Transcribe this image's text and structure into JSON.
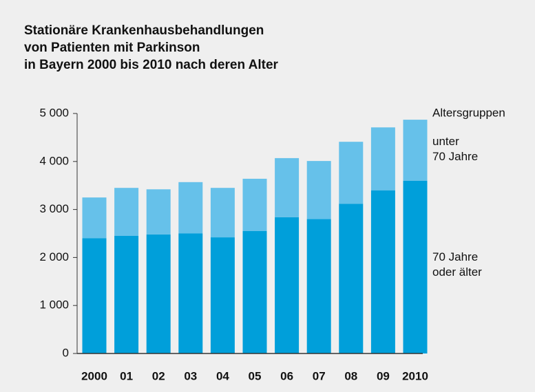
{
  "chart_data": {
    "type": "stacked_bar",
    "title": [
      "Stationäre Krankenhausbehandlungen",
      "von Patienten mit Parkinson",
      "in Bayern 2000 bis 2010 nach deren Alter"
    ],
    "legend_title": "Altersgruppen",
    "categories": [
      "2000",
      "01",
      "02",
      "03",
      "04",
      "05",
      "06",
      "07",
      "08",
      "09",
      "2010"
    ],
    "series": [
      {
        "name": "70 Jahre oder älter",
        "color": "#009fda",
        "values": [
          2400,
          2450,
          2480,
          2500,
          2420,
          2550,
          2840,
          2800,
          3120,
          3400,
          3600
        ]
      },
      {
        "name": "unter 70 Jahre",
        "color": "#66c1ea",
        "values": [
          850,
          1000,
          940,
          1070,
          1030,
          1090,
          1230,
          1210,
          1290,
          1310,
          1270
        ]
      }
    ],
    "ylim": [
      0,
      5000
    ],
    "yticks": [
      0,
      {
        "value": 1000,
        "label": "1 000"
      },
      {
        "value": 2000,
        "label": "2 000"
      },
      {
        "value": 3000,
        "label": "3 000"
      },
      {
        "value": 4000,
        "label": "4 000"
      },
      {
        "value": 5000,
        "label": "5 000"
      }
    ]
  }
}
